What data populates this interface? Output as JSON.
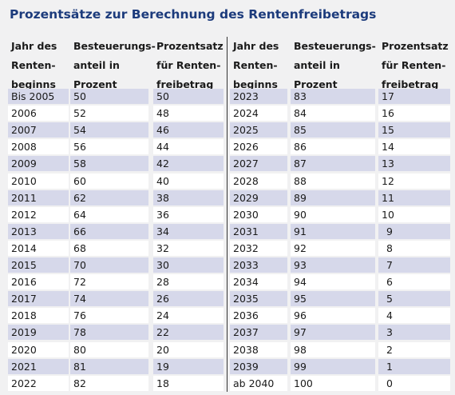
{
  "title": "Prozentsätze zur Berechnung des Rentenfreibetrags",
  "headers": [
    [
      "Jahr des",
      "Renten-",
      "beginns"
    ],
    [
      "Besteuerungs-",
      "anteil in",
      "Prozent"
    ],
    [
      "Prozentsatz",
      "für Renten-",
      "freibetrag"
    ],
    [
      "Jahr des",
      "Renten-",
      "beginns"
    ],
    [
      "Besteuerungs-",
      "anteil in",
      "Prozent"
    ],
    [
      "Prozentsatz",
      "für Renten-",
      "freibetrag"
    ]
  ],
  "rows": [
    [
      "Bis 2005",
      50,
      50,
      2023,
      83,
      17
    ],
    [
      2006,
      52,
      48,
      2024,
      84,
      16
    ],
    [
      2007,
      54,
      46,
      2025,
      85,
      15
    ],
    [
      2008,
      56,
      44,
      2026,
      86,
      14
    ],
    [
      2009,
      58,
      42,
      2027,
      87,
      13
    ],
    [
      2010,
      60,
      40,
      2028,
      88,
      12
    ],
    [
      2011,
      62,
      38,
      2029,
      89,
      11
    ],
    [
      2012,
      64,
      36,
      2030,
      90,
      10
    ],
    [
      2013,
      66,
      34,
      2031,
      91,
      9
    ],
    [
      2014,
      68,
      32,
      2032,
      92,
      8
    ],
    [
      2015,
      70,
      30,
      2033,
      93,
      7
    ],
    [
      2016,
      72,
      28,
      2034,
      94,
      6
    ],
    [
      2017,
      74,
      26,
      2035,
      95,
      5
    ],
    [
      2018,
      76,
      24,
      2036,
      96,
      4
    ],
    [
      2019,
      78,
      22,
      2037,
      97,
      3
    ],
    [
      2020,
      80,
      20,
      2038,
      98,
      2
    ],
    [
      2021,
      81,
      19,
      2039,
      99,
      1
    ],
    [
      2022,
      82,
      18,
      "ab 2040",
      100,
      0
    ]
  ]
}
